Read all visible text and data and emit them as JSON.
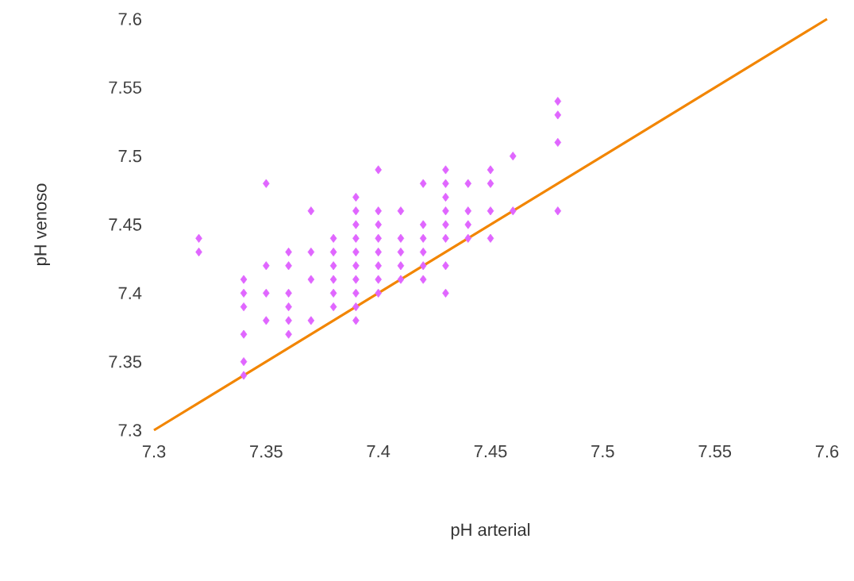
{
  "chart_data": {
    "type": "scatter",
    "xlabel": "pH arterial",
    "ylabel": "pH venoso",
    "xlim": [
      7.3,
      7.6
    ],
    "ylim": [
      7.3,
      7.6
    ],
    "xticks": [
      7.3,
      7.35,
      7.4,
      7.45,
      7.5,
      7.55,
      7.6
    ],
    "yticks": [
      7.3,
      7.35,
      7.4,
      7.45,
      7.5,
      7.55,
      7.6
    ],
    "grid": false,
    "series": [
      {
        "color": "#e066ff",
        "marker": "diamond",
        "x": [
          7.32,
          7.32,
          7.34,
          7.34,
          7.34,
          7.34,
          7.34,
          7.34,
          7.35,
          7.35,
          7.35,
          7.35,
          7.36,
          7.36,
          7.36,
          7.36,
          7.36,
          7.36,
          7.37,
          7.37,
          7.37,
          7.37,
          7.38,
          7.38,
          7.38,
          7.38,
          7.38,
          7.38,
          7.39,
          7.39,
          7.39,
          7.39,
          7.39,
          7.39,
          7.39,
          7.39,
          7.39,
          7.39,
          7.4,
          7.4,
          7.4,
          7.4,
          7.4,
          7.4,
          7.4,
          7.4,
          7.41,
          7.41,
          7.41,
          7.41,
          7.41,
          7.42,
          7.42,
          7.42,
          7.42,
          7.42,
          7.42,
          7.43,
          7.43,
          7.43,
          7.43,
          7.43,
          7.43,
          7.43,
          7.43,
          7.44,
          7.44,
          7.44,
          7.44,
          7.45,
          7.45,
          7.45,
          7.45,
          7.46,
          7.46,
          7.48,
          7.48,
          7.48,
          7.48
        ],
        "values": [
          7.44,
          7.43,
          7.41,
          7.4,
          7.39,
          7.37,
          7.35,
          7.34,
          7.48,
          7.42,
          7.4,
          7.38,
          7.43,
          7.42,
          7.4,
          7.39,
          7.38,
          7.37,
          7.46,
          7.43,
          7.41,
          7.38,
          7.44,
          7.43,
          7.42,
          7.41,
          7.4,
          7.39,
          7.47,
          7.46,
          7.45,
          7.44,
          7.43,
          7.42,
          7.41,
          7.4,
          7.39,
          7.38,
          7.49,
          7.46,
          7.45,
          7.44,
          7.43,
          7.42,
          7.41,
          7.4,
          7.46,
          7.44,
          7.43,
          7.42,
          7.41,
          7.48,
          7.45,
          7.44,
          7.43,
          7.42,
          7.41,
          7.49,
          7.48,
          7.47,
          7.46,
          7.45,
          7.44,
          7.42,
          7.4,
          7.48,
          7.46,
          7.45,
          7.44,
          7.49,
          7.48,
          7.46,
          7.44,
          7.5,
          7.46,
          7.54,
          7.53,
          7.51,
          7.46
        ]
      },
      {
        "type": "line",
        "color": "#f28500",
        "marker": "none",
        "line_style": "solid",
        "x": [
          7.3,
          7.6
        ],
        "values": [
          7.3,
          7.6
        ]
      }
    ]
  }
}
